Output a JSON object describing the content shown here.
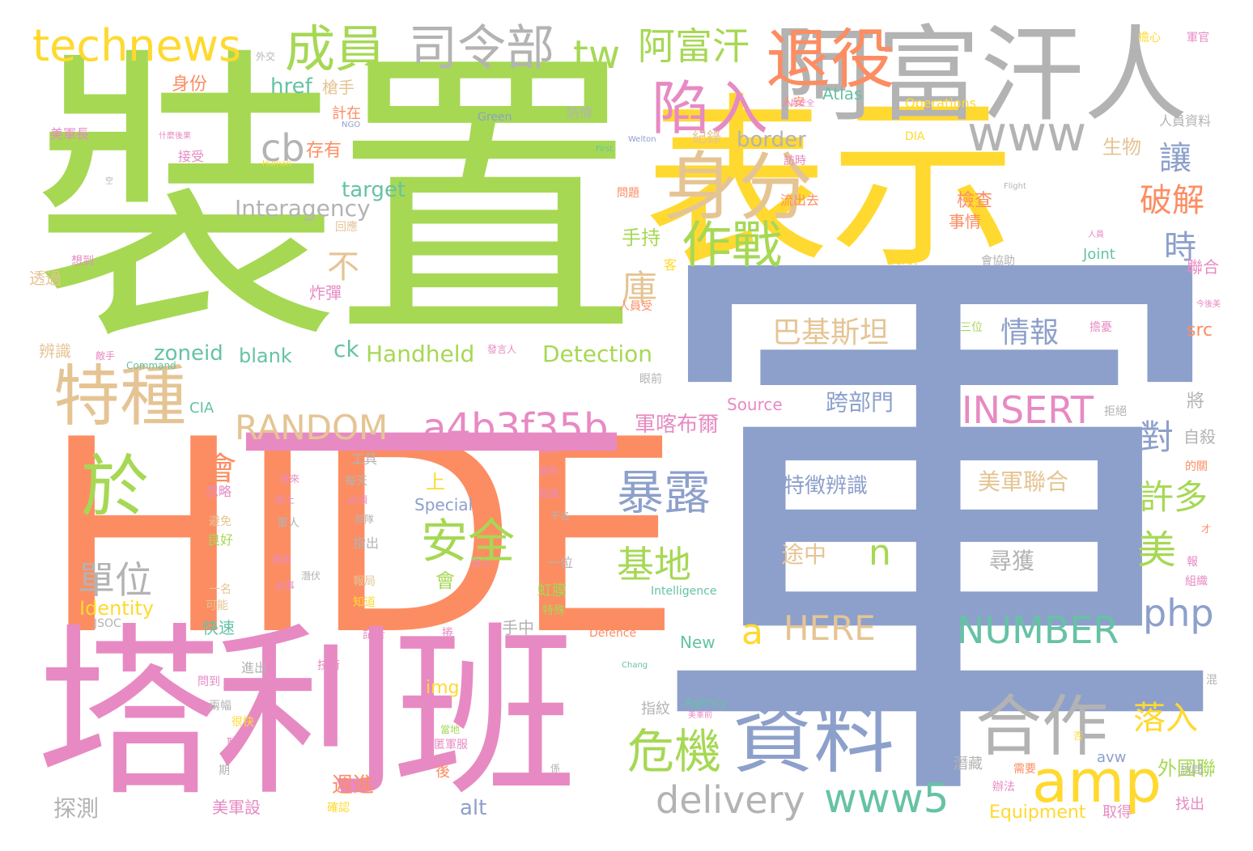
{
  "palette": {
    "green": "#a6d854",
    "orange": "#fc8d62",
    "blue": "#8da0cb",
    "pink": "#e78ac3",
    "yellow": "#ffd92f",
    "tan": "#e5c494",
    "gray": "#b3b3b3",
    "teal": "#66c2a5"
  },
  "words": [
    {
      "text": "裝置",
      "color": "green"
    },
    {
      "text": "軍",
      "color": "blue"
    },
    {
      "text": "HIDE",
      "color": "orange"
    },
    {
      "text": "表示",
      "color": "yellow"
    },
    {
      "text": "塔利班",
      "color": "pink"
    },
    {
      "text": "一",
      "color": "pink"
    },
    {
      "text": "阿富汗人",
      "color": "gray"
    },
    {
      "text": "退役",
      "color": "orange"
    },
    {
      "text": "身分",
      "color": "tan"
    },
    {
      "text": "陷入",
      "color": "pink"
    },
    {
      "text": "特種",
      "color": "tan"
    },
    {
      "text": "於",
      "color": "green"
    },
    {
      "text": "資料",
      "color": "blue"
    },
    {
      "text": "合作",
      "color": "gray"
    },
    {
      "text": "amp",
      "color": "yellow"
    },
    {
      "text": "technews",
      "color": "yellow"
    },
    {
      "text": "成員",
      "color": "green"
    },
    {
      "text": "司令部",
      "color": "gray"
    },
    {
      "text": "tw",
      "color": "green"
    },
    {
      "text": "阿富汗",
      "color": "green"
    },
    {
      "text": "www",
      "color": "gray"
    },
    {
      "text": "作戰",
      "color": "green"
    },
    {
      "text": "cb",
      "color": "gray"
    },
    {
      "text": "RANDOM",
      "color": "tan"
    },
    {
      "text": "a4b3f35b",
      "color": "pink"
    },
    {
      "text": "INSERT",
      "color": "pink"
    },
    {
      "text": "暴露",
      "color": "blue"
    },
    {
      "text": "安全",
      "color": "green"
    },
    {
      "text": "危機",
      "color": "green"
    },
    {
      "text": "delivery",
      "color": "gray"
    },
    {
      "text": "www5",
      "color": "teal"
    },
    {
      "text": "NUMBER",
      "color": "teal"
    },
    {
      "text": "php",
      "color": "blue"
    },
    {
      "text": "HERE",
      "color": "tan"
    },
    {
      "text": "基地",
      "color": "green"
    },
    {
      "text": "單位",
      "color": "gray"
    },
    {
      "text": "會",
      "color": "orange"
    },
    {
      "text": "不",
      "color": "tan"
    },
    {
      "text": "庫",
      "color": "tan"
    },
    {
      "text": "破解",
      "color": "orange"
    },
    {
      "text": "讓",
      "color": "blue"
    },
    {
      "text": "時",
      "color": "blue"
    },
    {
      "text": "許多",
      "color": "green"
    },
    {
      "text": "美",
      "color": "green"
    },
    {
      "text": "對",
      "color": "blue"
    },
    {
      "text": "落入",
      "color": "yellow"
    },
    {
      "text": "n",
      "color": "green"
    },
    {
      "text": "a",
      "color": "yellow"
    },
    {
      "text": "巴基斯坦",
      "color": "tan"
    },
    {
      "text": "情報",
      "color": "blue"
    },
    {
      "text": "特徵辨識",
      "color": "blue"
    },
    {
      "text": "美軍聯合",
      "color": "tan"
    },
    {
      "text": "尋獲",
      "color": "gray"
    },
    {
      "text": "途中",
      "color": "tan"
    },
    {
      "text": "跨部門",
      "color": "blue"
    },
    {
      "text": "軍喀布爾",
      "color": "pink"
    },
    {
      "text": "Detection",
      "color": "green"
    },
    {
      "text": "Handheld",
      "color": "green"
    },
    {
      "text": "zoneid",
      "color": "teal"
    },
    {
      "text": "blank",
      "color": "teal"
    },
    {
      "text": "ck",
      "color": "teal"
    },
    {
      "text": "Interagency",
      "color": "gray"
    },
    {
      "text": "target",
      "color": "teal"
    },
    {
      "text": "border",
      "color": "gray"
    },
    {
      "text": "href",
      "color": "teal"
    },
    {
      "text": "存有",
      "color": "orange"
    },
    {
      "text": "身份",
      "color": "orange"
    },
    {
      "text": "槍手",
      "color": "tan"
    },
    {
      "text": "計在",
      "color": "orange"
    },
    {
      "text": "手持",
      "color": "green"
    },
    {
      "text": "紀錄",
      "color": "tan"
    },
    {
      "text": "生物",
      "color": "tan"
    },
    {
      "text": "檢查",
      "color": "orange"
    },
    {
      "text": "事情",
      "color": "orange"
    },
    {
      "text": "外國聯",
      "color": "green"
    },
    {
      "text": "週進",
      "color": "orange"
    },
    {
      "text": "美軍設",
      "color": "pink"
    },
    {
      "text": "alt",
      "color": "blue"
    },
    {
      "text": "img",
      "color": "yellow"
    },
    {
      "text": "Identity",
      "color": "yellow"
    },
    {
      "text": "探測",
      "color": "gray"
    },
    {
      "text": "Equipment",
      "color": "yellow"
    },
    {
      "text": "取得",
      "color": "pink"
    },
    {
      "text": "找出",
      "color": "pink"
    },
    {
      "text": "avw",
      "color": "blue"
    },
    {
      "text": "潛藏",
      "color": "gray"
    },
    {
      "text": "指紋",
      "color": "gray"
    },
    {
      "text": "虹膜",
      "color": "green"
    },
    {
      "text": "Special",
      "color": "blue"
    },
    {
      "text": "上",
      "color": "yellow"
    },
    {
      "text": "會",
      "color": "green"
    },
    {
      "text": "src",
      "color": "orange"
    },
    {
      "text": "將",
      "color": "gray"
    },
    {
      "text": "自殺",
      "color": "gray"
    },
    {
      "text": "Joint",
      "color": "teal"
    },
    {
      "text": "Source",
      "color": "pink"
    },
    {
      "text": "Atlas",
      "color": "teal"
    },
    {
      "text": "Operations",
      "color": "yellow"
    },
    {
      "text": "Green",
      "color": "blue"
    },
    {
      "text": "防情",
      "color": "gray"
    },
    {
      "text": "人員資料",
      "color": "gray"
    },
    {
      "text": "聯合",
      "color": "pink"
    },
    {
      "text": "Beret",
      "color": "yellow"
    },
    {
      "text": "DIA",
      "color": "yellow"
    },
    {
      "text": "CIA",
      "color": "teal"
    },
    {
      "text": "Command",
      "color": "teal"
    },
    {
      "text": "New",
      "color": "teal"
    },
    {
      "text": "Intelligence",
      "color": "teal"
    },
    {
      "text": "Defence",
      "color": "orange"
    },
    {
      "text": "Agency",
      "color": "teal"
    },
    {
      "text": "Human",
      "color": "yellow"
    },
    {
      "text": "Welton",
      "color": "blue"
    },
    {
      "text": "First",
      "color": "teal"
    },
    {
      "text": "NGO",
      "color": "blue"
    },
    {
      "text": "Flight",
      "color": "gray"
    },
    {
      "text": "Chang",
      "color": "teal"
    },
    {
      "text": "JSOC",
      "color": "gray"
    },
    {
      "text": "美軍長",
      "color": "pink"
    },
    {
      "text": "接受",
      "color": "pink"
    },
    {
      "text": "透過",
      "color": "tan"
    },
    {
      "text": "辨識",
      "color": "tan"
    },
    {
      "text": "炸彈",
      "color": "pink"
    },
    {
      "text": "工具",
      "color": "gray"
    },
    {
      "text": "每天",
      "color": "gray"
    },
    {
      "text": "忽略",
      "color": "pink"
    },
    {
      "text": "避免",
      "color": "tan"
    },
    {
      "text": "良好",
      "color": "green"
    },
    {
      "text": "軍人",
      "color": "gray"
    },
    {
      "text": "指出",
      "color": "gray"
    },
    {
      "text": "一名",
      "color": "tan"
    },
    {
      "text": "可能",
      "color": "tan"
    },
    {
      "text": "快速",
      "color": "teal"
    },
    {
      "text": "進出",
      "color": "gray"
    },
    {
      "text": "技術",
      "color": "pink"
    },
    {
      "text": "兩幅",
      "color": "gray"
    },
    {
      "text": "很快",
      "color": "yellow"
    },
    {
      "text": "手中",
      "color": "gray"
    },
    {
      "text": "一位",
      "color": "gray"
    },
    {
      "text": "特殊",
      "color": "green"
    },
    {
      "text": "知道",
      "color": "yellow"
    },
    {
      "text": "報局",
      "color": "tan"
    },
    {
      "text": "記者",
      "color": "pink"
    },
    {
      "text": "後",
      "color": "orange"
    },
    {
      "text": "眼前",
      "color": "gray"
    },
    {
      "text": "問題",
      "color": "orange"
    },
    {
      "text": "流出去",
      "color": "orange"
    },
    {
      "text": "訪時",
      "color": "pink"
    },
    {
      "text": "人安",
      "color": "orange"
    },
    {
      "text": "會協助",
      "color": "gray"
    },
    {
      "text": "三位",
      "color": "green"
    },
    {
      "text": "擔憂",
      "color": "pink"
    },
    {
      "text": "拒絕",
      "color": "gray"
    },
    {
      "text": "的關",
      "color": "orange"
    },
    {
      "text": "組織",
      "color": "pink"
    },
    {
      "text": "報",
      "color": "pink"
    },
    {
      "text": "混",
      "color": "gray"
    },
    {
      "text": "訪問",
      "color": "gray"
    },
    {
      "text": "辦法",
      "color": "pink"
    },
    {
      "text": "需要",
      "color": "orange"
    },
    {
      "text": "安全性",
      "color": "pink"
    },
    {
      "text": "期",
      "color": "gray"
    },
    {
      "text": "聯",
      "color": "pink"
    },
    {
      "text": "確認",
      "color": "yellow"
    },
    {
      "text": "問到",
      "color": "pink"
    },
    {
      "text": "客",
      "color": "yellow"
    },
    {
      "text": "擔心",
      "color": "yellow"
    },
    {
      "text": "軍官",
      "color": "pink"
    },
    {
      "text": "什麼後果",
      "color": "pink"
    },
    {
      "text": "想到",
      "color": "pink"
    },
    {
      "text": "回應",
      "color": "tan"
    },
    {
      "text": "人員受",
      "color": "orange"
    },
    {
      "text": "發言人",
      "color": "pink"
    },
    {
      "text": "資訊",
      "color": "pink"
    },
    {
      "text": "遺失",
      "color": "pink"
    },
    {
      "text": "但國",
      "color": "pink"
    },
    {
      "text": "干名",
      "color": "gray"
    },
    {
      "text": "部隊",
      "color": "gray"
    },
    {
      "text": "必須",
      "color": "pink"
    },
    {
      "text": "沒入",
      "color": "pink"
    },
    {
      "text": "導致",
      "color": "pink"
    },
    {
      "text": "此事",
      "color": "pink"
    },
    {
      "text": "敵手",
      "color": "pink"
    },
    {
      "text": "外交",
      "color": "gray"
    },
    {
      "text": "當地",
      "color": "green"
    },
    {
      "text": "係",
      "color": "gray"
    },
    {
      "text": "否",
      "color": "yellow"
    },
    {
      "text": "才",
      "color": "orange"
    },
    {
      "text": "今後美",
      "color": "pink"
    },
    {
      "text": "美軍前",
      "color": "pink"
    },
    {
      "text": "捲",
      "color": "pink"
    },
    {
      "text": "捨上",
      "color": "pink"
    },
    {
      "text": "選來",
      "color": "pink"
    },
    {
      "text": "潛伏",
      "color": "gray"
    },
    {
      "text": "人員",
      "color": "pink"
    },
    {
      "text": "人員安全",
      "color": "pink"
    },
    {
      "text": "空",
      "color": "gray"
    },
    {
      "text": "匿軍服",
      "color": "pink"
    }
  ]
}
